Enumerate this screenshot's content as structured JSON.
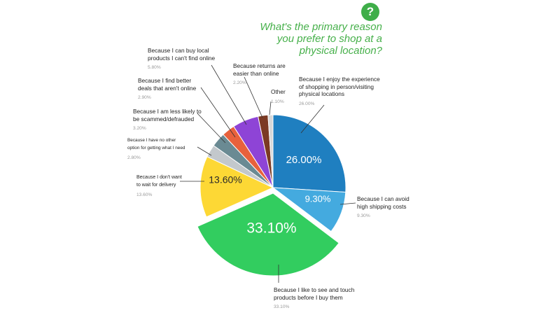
{
  "title_lines": [
    "What's the primary reason",
    "you prefer to shop at a",
    "physical location?"
  ],
  "question_icon": "?",
  "colors": {
    "accent": "#46b04a",
    "experience": "#1f7fc0",
    "shipping": "#44aadf",
    "touch": "#32cd5f",
    "delivery": "#fdd835",
    "no_other": "#c3c8cc",
    "scammed": "#6a8a93",
    "deals": "#e8613c",
    "local": "#8e44d6",
    "returns": "#7b3a24",
    "other": "#d8d8d8"
  },
  "chart_data": {
    "type": "pie",
    "title": "What's the primary reason you prefer to shop at a physical location?",
    "slices": [
      {
        "key": "experience",
        "label_lines": [
          "Because I enjoy the experience",
          "of shopping in person/visiting",
          "physical locations"
        ],
        "value": 26.0,
        "value_label": "26.00%",
        "inner_label": "26.00%"
      },
      {
        "key": "shipping",
        "label_lines": [
          "Because I can avoid",
          "high shipping costs"
        ],
        "value": 9.3,
        "value_label": "9.30%",
        "inner_label": "9.30%"
      },
      {
        "key": "touch",
        "label_lines": [
          "Because I like to see and touch",
          "products before I buy them"
        ],
        "value": 33.1,
        "value_label": "33.10%",
        "inner_label": "33.10%"
      },
      {
        "key": "delivery",
        "label_lines": [
          "Because I don't want",
          "to wait for delivery"
        ],
        "value": 13.6,
        "value_label": "13.60%",
        "inner_label": "13.60%"
      },
      {
        "key": "no_other",
        "label_lines": [
          "Because I have no other",
          "option for getting what I need"
        ],
        "value": 2.8,
        "value_label": "2.80%"
      },
      {
        "key": "scammed",
        "label_lines": [
          "Because I am less likely to",
          "be scammed/defrauded"
        ],
        "value": 3.2,
        "value_label": "3.20%"
      },
      {
        "key": "deals",
        "label_lines": [
          "Because I find better",
          "deals that aren't online"
        ],
        "value": 2.9,
        "value_label": "2.90%"
      },
      {
        "key": "local",
        "label_lines": [
          "Because I can buy local",
          "products I can't find online"
        ],
        "value": 5.8,
        "value_label": "5.80%"
      },
      {
        "key": "returns",
        "label_lines": [
          "Because returns are",
          "easier than online"
        ],
        "value": 2.2,
        "value_label": "2.20%"
      },
      {
        "key": "other",
        "label_lines": [
          "Other"
        ],
        "value": 1.1,
        "value_label": "1.10%"
      }
    ]
  }
}
